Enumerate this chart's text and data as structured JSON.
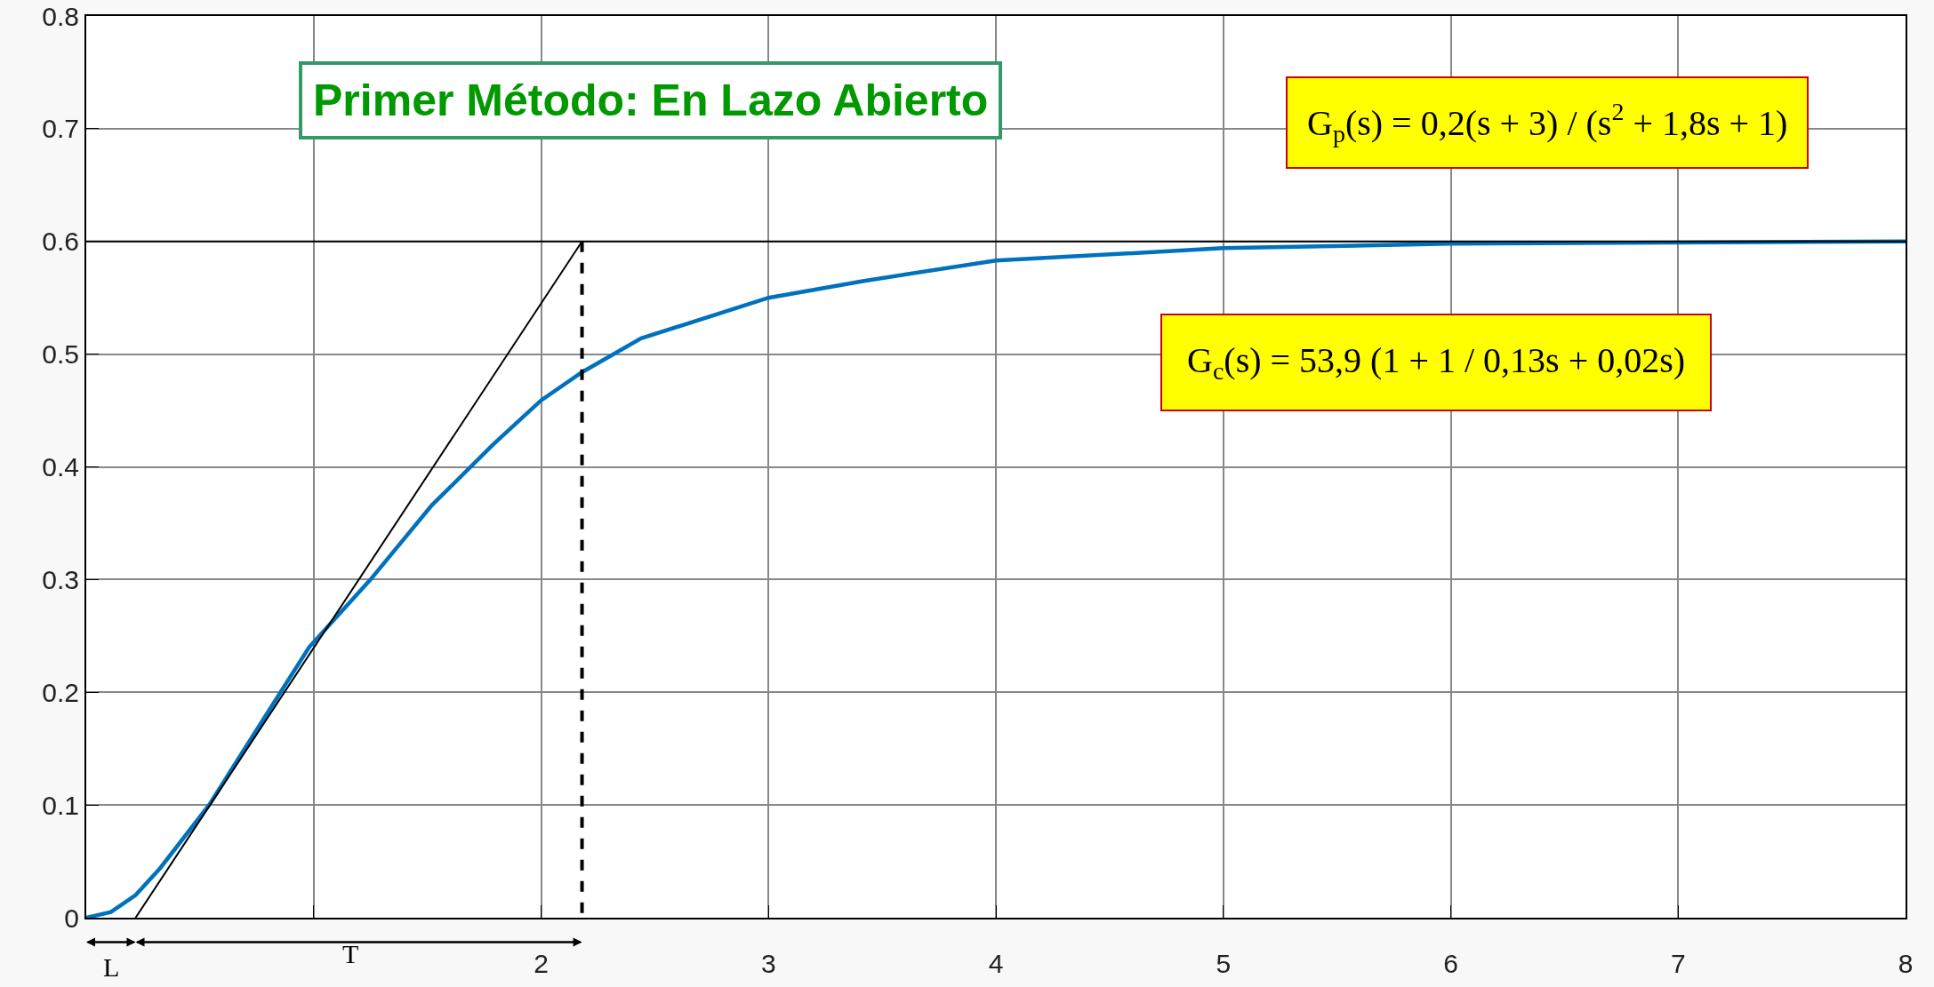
{
  "chart_data": {
    "type": "line",
    "title": "Primer Método: En Lazo Abierto",
    "xlim": [
      0,
      8
    ],
    "xticks": [
      {
        "value": 0,
        "label": null
      },
      {
        "value": 1,
        "label": null
      },
      2,
      3,
      4,
      5,
      6,
      7,
      8
    ],
    "ylim": [
      0,
      0.8
    ],
    "yticks": [
      0,
      0.1,
      0.2,
      0.3,
      0.4,
      0.5,
      0.6,
      0.7,
      0.8
    ],
    "grid": true,
    "series": [
      {
        "color": "#0072bd",
        "x": [
          0,
          0.108,
          0.217,
          0.325,
          0.54,
          0.98,
          1.25,
          1.52,
          1.79,
          2.0,
          2.18,
          2.44,
          3.0,
          3.42,
          4.0,
          5.0,
          6.0,
          7.0,
          8.0
        ],
        "values": [
          0,
          0.005,
          0.02,
          0.044,
          0.1,
          0.24,
          0.3,
          0.366,
          0.42,
          0.459,
          0.484,
          0.514,
          0.55,
          0.565,
          0.583,
          0.594,
          0.598,
          0.599,
          0.6
        ]
      },
      {
        "color": "#000000",
        "x": [
          0.217,
          2.18
        ],
        "values": [
          0,
          0.6
        ]
      },
      {
        "color": "#000000",
        "x": [
          2.18,
          2.18
        ],
        "values": [
          0.6,
          0
        ],
        "line_style": "dashed"
      }
    ],
    "ref_lines": [
      {
        "axis": "y",
        "value": 0.6,
        "color": "#000000"
      }
    ],
    "annotations": [
      "L",
      "T",
      "G$_{p}$(s) = 0,2(s + 3) / (s$^{2}$ + 1,8s + 1)",
      "G$_{c}$(s) = 53,9 (1 + 1 / 0,13s + 0,02s)"
    ]
  }
}
